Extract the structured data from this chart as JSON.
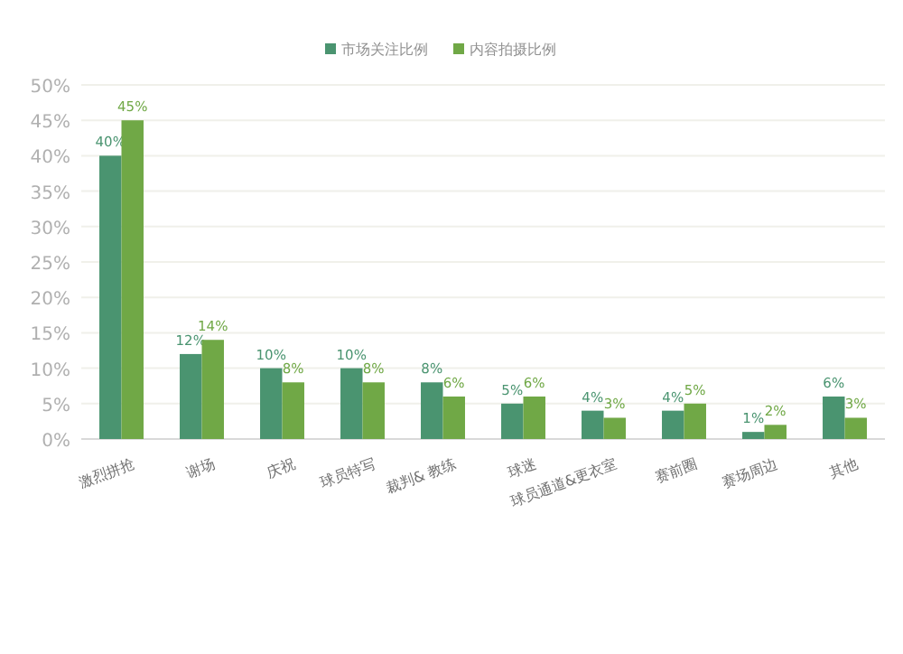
{
  "chart_data": {
    "type": "bar",
    "categories": [
      "激烈拼抢",
      "谢场",
      "庆祝",
      "球员特写",
      "裁判& 教练",
      "球迷",
      "球员通道&更衣室",
      "赛前圈",
      "赛场周边",
      "其他"
    ],
    "series": [
      {
        "name": "市场关注比例",
        "color": "#4a9470",
        "values": [
          40,
          12,
          10,
          10,
          8,
          5,
          4,
          4,
          1,
          6
        ],
        "value_labels": [
          "40%",
          "12%",
          "10%",
          "10%",
          "8%",
          "5%",
          "4%",
          "4%",
          "1%",
          "6%"
        ]
      },
      {
        "name": "内容拍摄比例",
        "color": "#70a846",
        "values": [
          45,
          14,
          8,
          8,
          6,
          6,
          3,
          5,
          2,
          3
        ],
        "value_labels": [
          "45%",
          "14%",
          "8%",
          "8%",
          "6%",
          "6%",
          "3%",
          "5%",
          "2%",
          "3%"
        ]
      }
    ],
    "ylim": [
      0,
      50
    ],
    "yticks": [
      {
        "value": 0,
        "label": "0%"
      },
      {
        "value": 5,
        "label": "5%"
      },
      {
        "value": 10,
        "label": "10%"
      },
      {
        "value": 15,
        "label": "15%"
      },
      {
        "value": 20,
        "label": "20%"
      },
      {
        "value": 25,
        "label": "25%"
      },
      {
        "value": 30,
        "label": "30%"
      },
      {
        "value": 35,
        "label": "35%"
      },
      {
        "value": 40,
        "label": "40%"
      },
      {
        "value": 45,
        "label": "45%"
      },
      {
        "value": 50,
        "label": "50%"
      }
    ],
    "grid": "y",
    "legend": "top"
  }
}
